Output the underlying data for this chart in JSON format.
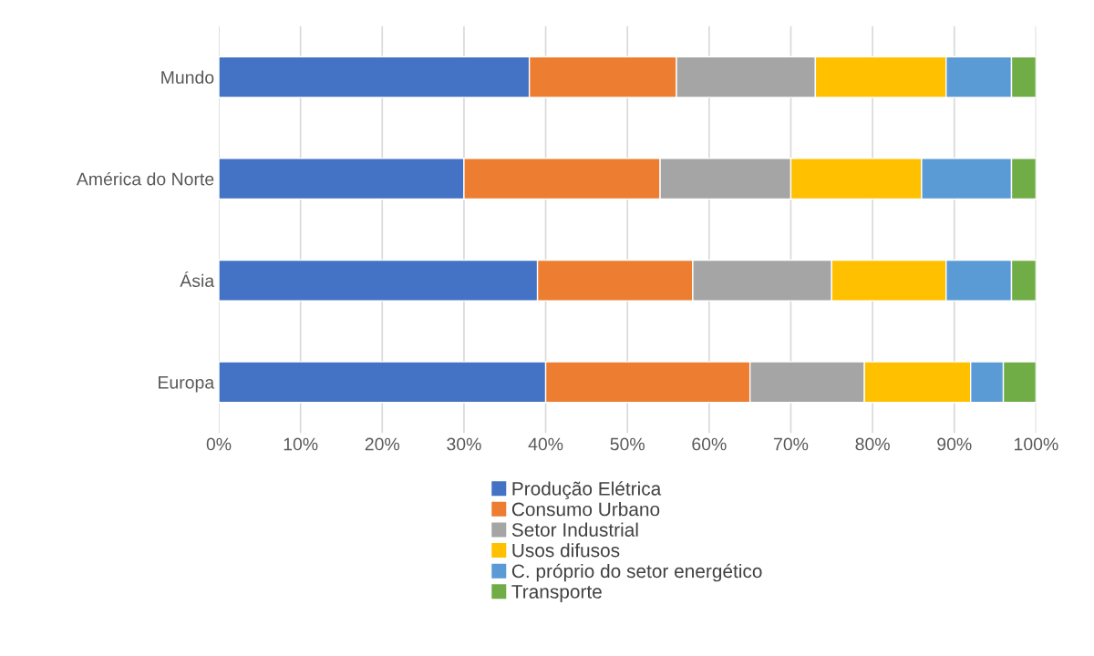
{
  "chart_data": {
    "type": "bar",
    "orientation": "horizontal",
    "stacked": true,
    "categories": [
      "Mundo",
      "América do Norte",
      "Ásia",
      "Europa"
    ],
    "series": [
      {
        "name": "Produção Elétrica",
        "color": "#4472c4",
        "values": [
          38,
          30,
          39,
          40
        ]
      },
      {
        "name": "Consumo Urbano",
        "color": "#ed7d31",
        "values": [
          18,
          24,
          19,
          25
        ]
      },
      {
        "name": "Setor Industrial",
        "color": "#a5a5a5",
        "values": [
          17,
          16,
          17,
          14
        ]
      },
      {
        "name": "Usos difusos",
        "color": "#ffc000",
        "values": [
          16,
          16,
          14,
          13
        ]
      },
      {
        "name": "C. próprio do setor energético",
        "color": "#5b9bd5",
        "values": [
          8,
          11,
          8,
          4
        ]
      },
      {
        "name": "Transporte",
        "color": "#70ad47",
        "values": [
          3,
          3,
          3,
          4
        ]
      }
    ],
    "xlim": [
      0,
      100
    ],
    "xticks": [
      {
        "value": 0,
        "label": "0%"
      },
      {
        "value": 10,
        "label": "10%"
      },
      {
        "value": 20,
        "label": "20%"
      },
      {
        "value": 30,
        "label": "30%"
      },
      {
        "value": 40,
        "label": "40%"
      },
      {
        "value": 50,
        "label": "50%"
      },
      {
        "value": 60,
        "label": "60%"
      },
      {
        "value": 70,
        "label": "70%"
      },
      {
        "value": 80,
        "label": "80%"
      },
      {
        "value": 90,
        "label": "90%"
      },
      {
        "value": 100,
        "label": "100%"
      }
    ],
    "grid": "x",
    "legend": "bottom"
  }
}
